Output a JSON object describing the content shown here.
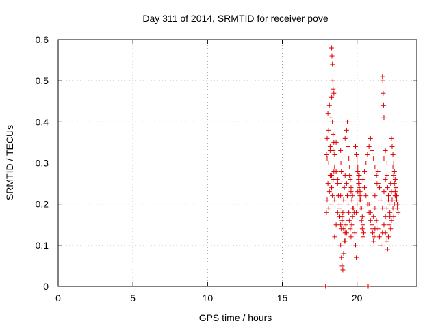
{
  "chart_data": {
    "type": "scatter",
    "title": "Day 311 of 2014, SRMTID for receiver pove",
    "xlabel": "GPS time / hours",
    "ylabel": "SRMTID / TECUs",
    "xlim": [
      0,
      24
    ],
    "ylim": [
      0,
      0.6
    ],
    "xticks": [
      0,
      5,
      10,
      15,
      20
    ],
    "xtick_labels": [
      "0",
      "5",
      "10",
      "15",
      "20"
    ],
    "yticks": [
      0,
      0.1,
      0.2,
      0.3,
      0.4,
      0.5,
      0.6
    ],
    "ytick_labels": [
      "0",
      "0.1",
      "0.2",
      "0.3",
      "0.4",
      "0.5",
      "0.6"
    ],
    "grid": true,
    "marker": "plus",
    "color": "#e00000",
    "series": [
      {
        "name": "SRMTID",
        "x": [
          17.9,
          17.9,
          20.7,
          20.75,
          17.95,
          18.0,
          18.05,
          18.1,
          18.15,
          18.2,
          18.25,
          18.3,
          18.35,
          18.4,
          18.45,
          18.5,
          17.95,
          18.0,
          18.05,
          18.1,
          18.15,
          18.2,
          18.25,
          18.3,
          18.35,
          18.4,
          18.45,
          18.5,
          18.0,
          18.1,
          18.2,
          18.3,
          18.4,
          18.5,
          18.6,
          18.7,
          18.8,
          18.3,
          18.32,
          18.35,
          18.38,
          18.4,
          18.45,
          18.5,
          18.6,
          18.7,
          18.75,
          18.8,
          18.85,
          18.9,
          18.95,
          19.0,
          19.05,
          19.1,
          19.15,
          19.2,
          18.5,
          18.6,
          18.7,
          18.8,
          18.9,
          19.0,
          19.1,
          19.2,
          19.3,
          19.4,
          18.9,
          18.95,
          19.0,
          19.05,
          19.1,
          19.15,
          19.2,
          19.25,
          18.9,
          18.92,
          18.95,
          19.2,
          19.3,
          19.35,
          19.4,
          19.45,
          19.5,
          19.55,
          19.6,
          19.65,
          19.7,
          19.3,
          19.35,
          19.4,
          19.45,
          19.5,
          19.55,
          19.6,
          19.65,
          19.7,
          19.75,
          19.4,
          19.5,
          19.6,
          19.7,
          19.8,
          19.85,
          19.9,
          19.95,
          19.9,
          19.95,
          20.0,
          20.05,
          20.1,
          20.15,
          20.2,
          19.95,
          20.0,
          20.05,
          20.1,
          20.15,
          20.2,
          20.25,
          20.3,
          20.35,
          20.4,
          20.0,
          20.05,
          20.1,
          20.15,
          20.2,
          20.25,
          20.3,
          20.35,
          20.4,
          20.45,
          20.4,
          20.5,
          20.6,
          20.7,
          20.8,
          20.9,
          21.0,
          21.1,
          21.2,
          20.5,
          20.6,
          20.7,
          20.8,
          20.9,
          21.0,
          21.1,
          21.2,
          21.3,
          21.4,
          20.8,
          20.9,
          21.0,
          21.05,
          21.1,
          21.15,
          21.2,
          21.2,
          21.3,
          21.4,
          21.5,
          21.6,
          21.7,
          21.8,
          21.9,
          22.0,
          21.3,
          21.4,
          21.5,
          21.6,
          21.7,
          21.8,
          21.9,
          22.0,
          22.1,
          21.7,
          21.72,
          21.75,
          21.78,
          21.8,
          21.8,
          21.9,
          22.0,
          22.05,
          22.1,
          22.15,
          22.2,
          22.25,
          21.9,
          22.0,
          22.05,
          22.1,
          22.15,
          22.2,
          22.25,
          22.3,
          22.3,
          22.35,
          22.4,
          22.45,
          22.5,
          22.55,
          22.6,
          22.65,
          22.7,
          22.75,
          22.3,
          22.35,
          22.4,
          22.45,
          22.5,
          22.55,
          22.6,
          22.65,
          22.7,
          22.75,
          22.4,
          22.45,
          22.5,
          22.55,
          22.6
        ],
        "y": [
          0.0,
          0.0,
          0.0,
          0.0,
          0.32,
          0.36,
          0.42,
          0.38,
          0.44,
          0.33,
          0.41,
          0.46,
          0.4,
          0.37,
          0.35,
          0.29,
          0.18,
          0.21,
          0.25,
          0.19,
          0.23,
          0.27,
          0.2,
          0.24,
          0.22,
          0.26,
          0.28,
          0.21,
          0.31,
          0.3,
          0.34,
          0.27,
          0.33,
          0.29,
          0.35,
          0.26,
          0.25,
          0.58,
          0.56,
          0.54,
          0.5,
          0.48,
          0.47,
          0.32,
          0.28,
          0.25,
          0.22,
          0.19,
          0.17,
          0.15,
          0.14,
          0.16,
          0.18,
          0.21,
          0.24,
          0.27,
          0.12,
          0.15,
          0.18,
          0.2,
          0.22,
          0.17,
          0.14,
          0.11,
          0.13,
          0.16,
          0.1,
          0.07,
          0.05,
          0.04,
          0.08,
          0.11,
          0.13,
          0.15,
          0.33,
          0.3,
          0.28,
          0.36,
          0.38,
          0.4,
          0.34,
          0.31,
          0.29,
          0.26,
          0.23,
          0.21,
          0.19,
          0.25,
          0.22,
          0.2,
          0.18,
          0.16,
          0.14,
          0.12,
          0.15,
          0.17,
          0.19,
          0.29,
          0.27,
          0.24,
          0.22,
          0.18,
          0.13,
          0.1,
          0.07,
          0.34,
          0.32,
          0.3,
          0.28,
          0.26,
          0.24,
          0.22,
          0.18,
          0.2,
          0.23,
          0.25,
          0.27,
          0.21,
          0.19,
          0.16,
          0.14,
          0.12,
          0.31,
          0.29,
          0.27,
          0.25,
          0.23,
          0.21,
          0.19,
          0.17,
          0.15,
          0.13,
          0.26,
          0.24,
          0.22,
          0.2,
          0.18,
          0.16,
          0.14,
          0.17,
          0.19,
          0.28,
          0.3,
          0.32,
          0.34,
          0.36,
          0.33,
          0.31,
          0.29,
          0.27,
          0.25,
          0.2,
          0.18,
          0.15,
          0.13,
          0.11,
          0.12,
          0.14,
          0.22,
          0.25,
          0.28,
          0.24,
          0.21,
          0.19,
          0.23,
          0.26,
          0.3,
          0.16,
          0.14,
          0.12,
          0.1,
          0.13,
          0.15,
          0.17,
          0.19,
          0.21,
          0.51,
          0.5,
          0.47,
          0.44,
          0.41,
          0.31,
          0.33,
          0.27,
          0.24,
          0.22,
          0.2,
          0.18,
          0.25,
          0.13,
          0.11,
          0.09,
          0.12,
          0.15,
          0.17,
          0.14,
          0.16,
          0.36,
          0.34,
          0.32,
          0.3,
          0.28,
          0.26,
          0.24,
          0.22,
          0.2,
          0.18,
          0.23,
          0.21,
          0.19,
          0.17,
          0.2,
          0.22,
          0.24,
          0.21,
          0.19,
          0.2,
          0.29,
          0.27,
          0.25,
          0.23,
          0.21
        ]
      }
    ]
  }
}
